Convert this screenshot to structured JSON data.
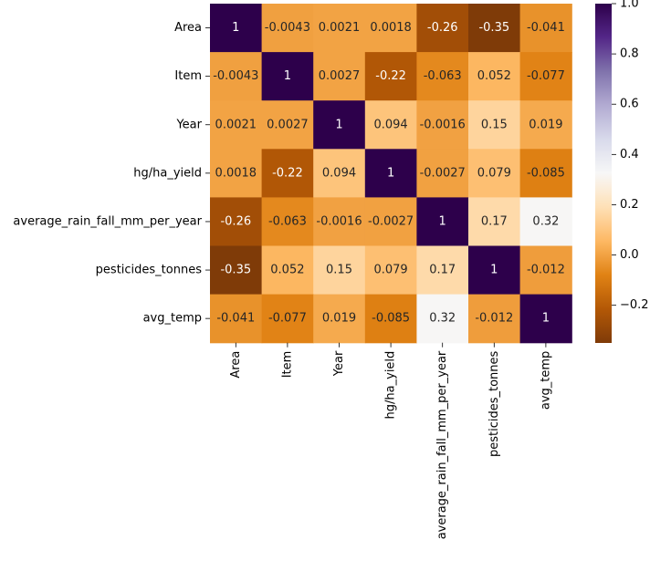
{
  "chart_data": {
    "type": "heatmap",
    "title": "",
    "xlabel": "",
    "ylabel": "",
    "rows": [
      "Area",
      "Item",
      "Year",
      "hg/ha_yield",
      "average_rain_fall_mm_per_year",
      "pesticides_tonnes",
      "avg_temp"
    ],
    "columns": [
      "Area",
      "Item",
      "Year",
      "hg/ha_yield",
      "average_rain_fall_mm_per_year",
      "pesticides_tonnes",
      "avg_temp"
    ],
    "values": [
      [
        1,
        -0.0043,
        0.0021,
        0.0018,
        -0.26,
        -0.35,
        -0.041
      ],
      [
        -0.0043,
        1,
        0.0027,
        -0.22,
        -0.063,
        0.052,
        -0.077
      ],
      [
        0.0021,
        0.0027,
        1,
        0.094,
        -0.0016,
        0.15,
        0.019
      ],
      [
        0.0018,
        -0.22,
        0.094,
        1,
        -0.0027,
        0.079,
        -0.085
      ],
      [
        -0.26,
        -0.063,
        -0.0016,
        -0.0027,
        1,
        0.17,
        0.32
      ],
      [
        -0.35,
        0.052,
        0.15,
        0.079,
        0.17,
        1,
        -0.012
      ],
      [
        -0.041,
        -0.077,
        0.019,
        -0.085,
        0.32,
        -0.012,
        1
      ]
    ],
    "annotations": [
      [
        "1",
        "-0.0043",
        "0.0021",
        "0.0018",
        "-0.26",
        "-0.35",
        "-0.041"
      ],
      [
        "-0.0043",
        "1",
        "0.0027",
        "-0.22",
        "-0.063",
        "0.052",
        "-0.077"
      ],
      [
        "0.0021",
        "0.0027",
        "1",
        "0.094",
        "-0.0016",
        "0.15",
        "0.019"
      ],
      [
        "0.0018",
        "-0.22",
        "0.094",
        "1",
        "-0.0027",
        "0.079",
        "-0.085"
      ],
      [
        "-0.26",
        "-0.063",
        "-0.0016",
        "-0.0027",
        "1",
        "0.17",
        "0.32"
      ],
      [
        "-0.35",
        "0.052",
        "0.15",
        "0.079",
        "0.17",
        "1",
        "-0.012"
      ],
      [
        "-0.041",
        "-0.077",
        "0.019",
        "-0.085",
        "0.32",
        "-0.012",
        "1"
      ]
    ],
    "colorscale": {
      "name": "PuOr",
      "vmin": -0.35,
      "vmax": 1.0,
      "stops": [
        "#7f3b08",
        "#b35806",
        "#e08214",
        "#fdb863",
        "#fee0b6",
        "#f7f7f7",
        "#d8daeb",
        "#b2abd2",
        "#8073ac",
        "#542788",
        "#2d004b"
      ]
    },
    "colorbar": {
      "ticks": [
        -0.2,
        0.0,
        0.2,
        0.4,
        0.6,
        0.8,
        1.0
      ],
      "tick_labels": [
        "−0.2",
        "0.0",
        "0.2",
        "0.4",
        "0.6",
        "0.8",
        "1.0"
      ]
    },
    "grid": false,
    "legend": "colorbar-right"
  }
}
